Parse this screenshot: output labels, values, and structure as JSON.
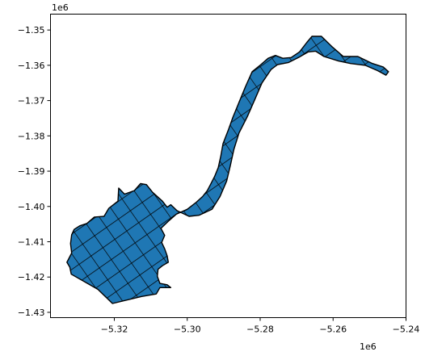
{
  "chart_data": {
    "type": "map",
    "title": "",
    "xlabel": "",
    "ylabel": "",
    "x_offset_label": "1e6",
    "y_offset_label": "1e6",
    "xlim": [
      -5.3375,
      -5.24
    ],
    "ylim": [
      -1.4315,
      -1.3455
    ],
    "x_ticks": [
      -5.32,
      -5.3,
      -5.28,
      -5.26,
      -5.24
    ],
    "x_tick_labels": [
      "−5.32",
      "−5.30",
      "−5.28",
      "−5.26",
      "−5.24"
    ],
    "y_ticks": [
      -1.35,
      -1.36,
      -1.37,
      -1.38,
      -1.39,
      -1.4,
      -1.41,
      -1.42,
      -1.43
    ],
    "y_tick_labels": [
      "−1.35",
      "−1.36",
      "−1.37",
      "−1.38",
      "−1.39",
      "−1.40",
      "−1.41",
      "−1.42",
      "−1.43"
    ],
    "grid": false,
    "fill_color": "#1f77b4",
    "edge_color": "#000000",
    "polygon": [
      [
        -5.3205,
        -1.4275
      ],
      [
        -5.3125,
        -1.4255
      ],
      [
        -5.3085,
        -1.4248
      ],
      [
        -5.3075,
        -1.423
      ],
      [
        -5.3045,
        -1.423
      ],
      [
        -5.3055,
        -1.4222
      ],
      [
        -5.3075,
        -1.4218
      ],
      [
        -5.3082,
        -1.4198
      ],
      [
        -5.308,
        -1.4178
      ],
      [
        -5.3068,
        -1.4168
      ],
      [
        -5.3052,
        -1.4158
      ],
      [
        -5.3055,
        -1.414
      ],
      [
        -5.3062,
        -1.412
      ],
      [
        -5.307,
        -1.4102
      ],
      [
        -5.3062,
        -1.4082
      ],
      [
        -5.3072,
        -1.4062
      ],
      [
        -5.305,
        -1.404
      ],
      [
        -5.303,
        -1.4022
      ],
      [
        -5.3,
        -1.4008
      ],
      [
        -5.2975,
        -1.3988
      ],
      [
        -5.2958,
        -1.3972
      ],
      [
        -5.2945,
        -1.3955
      ],
      [
        -5.2935,
        -1.3935
      ],
      [
        -5.2925,
        -1.3915
      ],
      [
        -5.2915,
        -1.389
      ],
      [
        -5.2908,
        -1.3858
      ],
      [
        -5.2902,
        -1.3822
      ],
      [
        -5.2888,
        -1.3785
      ],
      [
        -5.2875,
        -1.3748
      ],
      [
        -5.2858,
        -1.3705
      ],
      [
        -5.284,
        -1.366
      ],
      [
        -5.2822,
        -1.3618
      ],
      [
        -5.2798,
        -1.3598
      ],
      [
        -5.2778,
        -1.358
      ],
      [
        -5.2758,
        -1.3572
      ],
      [
        -5.2738,
        -1.358
      ],
      [
        -5.2715,
        -1.3578
      ],
      [
        -5.2692,
        -1.3562
      ],
      [
        -5.2672,
        -1.3535
      ],
      [
        -5.2658,
        -1.3518
      ],
      [
        -5.2632,
        -1.3518
      ],
      [
        -5.2602,
        -1.3548
      ],
      [
        -5.2572,
        -1.3575
      ],
      [
        -5.2532,
        -1.3575
      ],
      [
        -5.2492,
        -1.3595
      ],
      [
        -5.2462,
        -1.3605
      ],
      [
        -5.2448,
        -1.3618
      ],
      [
        -5.2455,
        -1.3628
      ],
      [
        -5.2478,
        -1.3615
      ],
      [
        -5.2512,
        -1.36
      ],
      [
        -5.2552,
        -1.3595
      ],
      [
        -5.2585,
        -1.3588
      ],
      [
        -5.2625,
        -1.3575
      ],
      [
        -5.2648,
        -1.356
      ],
      [
        -5.2668,
        -1.3562
      ],
      [
        -5.2695,
        -1.3578
      ],
      [
        -5.2722,
        -1.3592
      ],
      [
        -5.2752,
        -1.3598
      ],
      [
        -5.277,
        -1.3612
      ],
      [
        -5.2795,
        -1.365
      ],
      [
        -5.2815,
        -1.3698
      ],
      [
        -5.2835,
        -1.3745
      ],
      [
        -5.2858,
        -1.3792
      ],
      [
        -5.2872,
        -1.3838
      ],
      [
        -5.2882,
        -1.3885
      ],
      [
        -5.2892,
        -1.3928
      ],
      [
        -5.291,
        -1.3972
      ],
      [
        -5.2932,
        -1.4008
      ],
      [
        -5.2968,
        -1.4025
      ],
      [
        -5.2995,
        -1.4028
      ],
      [
        -5.3028,
        -1.4012
      ],
      [
        -5.3045,
        -1.3995
      ],
      [
        -5.3055,
        -1.4002
      ],
      [
        -5.3068,
        -1.3985
      ],
      [
        -5.3095,
        -1.396
      ],
      [
        -5.3112,
        -1.3938
      ],
      [
        -5.3128,
        -1.3935
      ],
      [
        -5.3145,
        -1.3955
      ],
      [
        -5.3172,
        -1.3965
      ],
      [
        -5.3188,
        -1.3948
      ],
      [
        -5.319,
        -1.3985
      ],
      [
        -5.3215,
        -1.4005
      ],
      [
        -5.3228,
        -1.4028
      ],
      [
        -5.3255,
        -1.403
      ],
      [
        -5.3275,
        -1.4048
      ],
      [
        -5.3295,
        -1.4055
      ],
      [
        -5.331,
        -1.4065
      ],
      [
        -5.3317,
        -1.408
      ],
      [
        -5.332,
        -1.4105
      ],
      [
        -5.3317,
        -1.4132
      ],
      [
        -5.3325,
        -1.4148
      ],
      [
        -5.333,
        -1.4158
      ],
      [
        -5.3322,
        -1.4172
      ],
      [
        -5.3318,
        -1.4192
      ],
      [
        -5.3245,
        -1.4235
      ]
    ]
  }
}
